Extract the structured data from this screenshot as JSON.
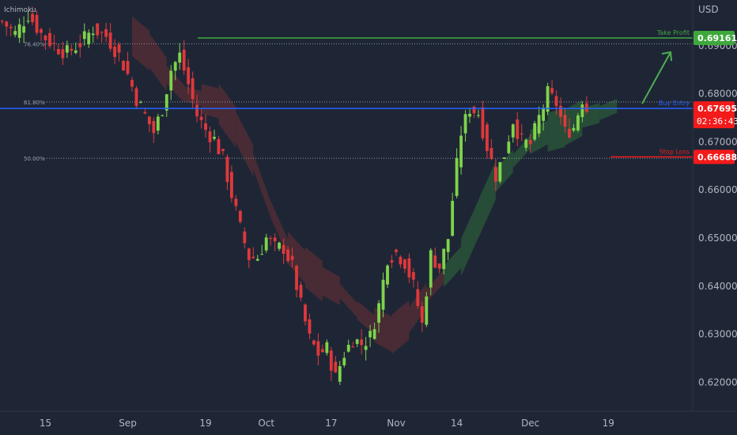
{
  "indicator_label": "Ichimoku",
  "currency": "USD",
  "colors": {
    "background": "#1e2636",
    "up": "#7fd34a",
    "down": "#e0383a",
    "cloud_bull": "#2f6b3a",
    "cloud_bear": "#6b2f33",
    "take_profit": "#3fa83c",
    "buy_entry": "#2962ff",
    "stop_loss": "#f21a1a",
    "arrow": "#4caf50",
    "grid_dots": "#8c919c"
  },
  "fib_levels": [
    {
      "label": "76.40%",
      "value": 0.6904
    },
    {
      "label": "61.80%",
      "value": 0.6783
    },
    {
      "label": "50.00%",
      "value": 0.6666
    }
  ],
  "lines": {
    "take_profit": {
      "label": "Take Profit",
      "value": 0.69161
    },
    "buy_entry": {
      "label": "Buy Entry",
      "value": 0.67695
    },
    "stop_loss": {
      "label": "Stop Loss",
      "value": 0.66688
    }
  },
  "badges": {
    "take_profit": "0.69161",
    "current_price": "0.67695",
    "countdown": "02:36:43",
    "stop_loss": "0.66688"
  },
  "chart_data": {
    "type": "candlestick",
    "title": "",
    "xlabel": "",
    "ylabel": "USD",
    "ylim": [
      0.614,
      0.6995
    ],
    "y_ticks": [
      "0.62000",
      "0.63000",
      "0.64000",
      "0.65000",
      "0.66000",
      "0.67000",
      "0.68000",
      "0.69000"
    ],
    "x_ticks": [
      "15",
      "Sep",
      "19",
      "Oct",
      "17",
      "Nov",
      "14",
      "Dec",
      "19"
    ],
    "x_tick_bar_index": [
      10,
      29,
      47,
      61,
      76,
      91,
      105,
      122,
      140
    ],
    "grid": false,
    "price_path": [
      [
        0,
        0.695
      ],
      [
        3,
        0.6925
      ],
      [
        6,
        0.6965
      ],
      [
        9,
        0.6925
      ],
      [
        12,
        0.69
      ],
      [
        15,
        0.6885
      ],
      [
        18,
        0.6905
      ],
      [
        21,
        0.6935
      ],
      [
        24,
        0.692
      ],
      [
        27,
        0.688
      ],
      [
        29,
        0.684
      ],
      [
        31,
        0.679
      ],
      [
        33,
        0.6755
      ],
      [
        35,
        0.672
      ],
      [
        37,
        0.677
      ],
      [
        39,
        0.685
      ],
      [
        41,
        0.688
      ],
      [
        43,
        0.682
      ],
      [
        45,
        0.6755
      ],
      [
        47,
        0.6725
      ],
      [
        49,
        0.6705
      ],
      [
        51,
        0.6665
      ],
      [
        53,
        0.659
      ],
      [
        55,
        0.652
      ],
      [
        57,
        0.646
      ],
      [
        59,
        0.646
      ],
      [
        61,
        0.65
      ],
      [
        63,
        0.648
      ],
      [
        65,
        0.648
      ],
      [
        67,
        0.644
      ],
      [
        69,
        0.636
      ],
      [
        71,
        0.629
      ],
      [
        73,
        0.626
      ],
      [
        75,
        0.627
      ],
      [
        77,
        0.621
      ],
      [
        79,
        0.626
      ],
      [
        81,
        0.629
      ],
      [
        83,
        0.628
      ],
      [
        85,
        0.6295
      ],
      [
        87,
        0.636
      ],
      [
        89,
        0.646
      ],
      [
        91,
        0.647
      ],
      [
        93,
        0.645
      ],
      [
        95,
        0.64
      ],
      [
        97,
        0.632
      ],
      [
        99,
        0.6465
      ],
      [
        101,
        0.644
      ],
      [
        103,
        0.65
      ],
      [
        104,
        0.658
      ],
      [
        106,
        0.672
      ],
      [
        108,
        0.677
      ],
      [
        110,
        0.676
      ],
      [
        112,
        0.669
      ],
      [
        114,
        0.663
      ],
      [
        116,
        0.6675
      ],
      [
        118,
        0.6745
      ],
      [
        120,
        0.67
      ],
      [
        122,
        0.6695
      ],
      [
        124,
        0.675
      ],
      [
        126,
        0.68
      ],
      [
        128,
        0.678
      ],
      [
        130,
        0.672
      ],
      [
        132,
        0.673
      ],
      [
        134,
        0.679
      ],
      [
        135,
        0.6768
      ]
    ],
    "cloud_path": [
      [
        30,
        0.692
      ],
      [
        34,
        0.689
      ],
      [
        38,
        0.684
      ],
      [
        42,
        0.68
      ],
      [
        46,
        0.679
      ],
      [
        50,
        0.678
      ],
      [
        54,
        0.673
      ],
      [
        58,
        0.666
      ],
      [
        62,
        0.656
      ],
      [
        66,
        0.648
      ],
      [
        70,
        0.644
      ],
      [
        74,
        0.641
      ],
      [
        78,
        0.639
      ],
      [
        82,
        0.635
      ],
      [
        86,
        0.632
      ],
      [
        90,
        0.63
      ],
      [
        94,
        0.633
      ],
      [
        98,
        0.638
      ],
      [
        102,
        0.642
      ],
      [
        106,
        0.646
      ],
      [
        110,
        0.654
      ],
      [
        114,
        0.662
      ],
      [
        118,
        0.666
      ],
      [
        122,
        0.67
      ],
      [
        126,
        0.672
      ],
      [
        130,
        0.673
      ],
      [
        134,
        0.675
      ],
      [
        138,
        0.676
      ],
      [
        142,
        0.6775
      ]
    ]
  }
}
